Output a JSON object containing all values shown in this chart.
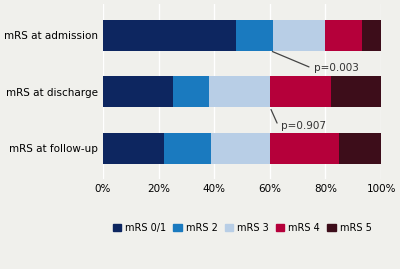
{
  "categories": [
    "mRS at admission",
    "mRS at discharge",
    "mRS at follow-up"
  ],
  "series": {
    "mRS 0/1": [
      48,
      25,
      22
    ],
    "mRS 2": [
      13,
      13,
      17
    ],
    "mRS 3": [
      19,
      22,
      21
    ],
    "mRS 4": [
      13,
      22,
      25
    ],
    "mRS 5": [
      7,
      18,
      15
    ]
  },
  "colors": {
    "mRS 0/1": "#0d2660",
    "mRS 2": "#1a7abf",
    "mRS 3": "#b8cee6",
    "mRS 4": "#b5003a",
    "mRS 5": "#3d0d1a"
  },
  "xlim": [
    0,
    100
  ],
  "xticks": [
    0,
    20,
    40,
    60,
    80,
    100
  ],
  "xticklabels": [
    "0%",
    "20%",
    "40%",
    "60%",
    "80%",
    "100%"
  ],
  "legend_order": [
    "mRS 0/1",
    "mRS 2",
    "mRS 3",
    "mRS 4",
    "mRS 5"
  ],
  "bg_color": "#f0f0ec",
  "bar_height": 0.55
}
